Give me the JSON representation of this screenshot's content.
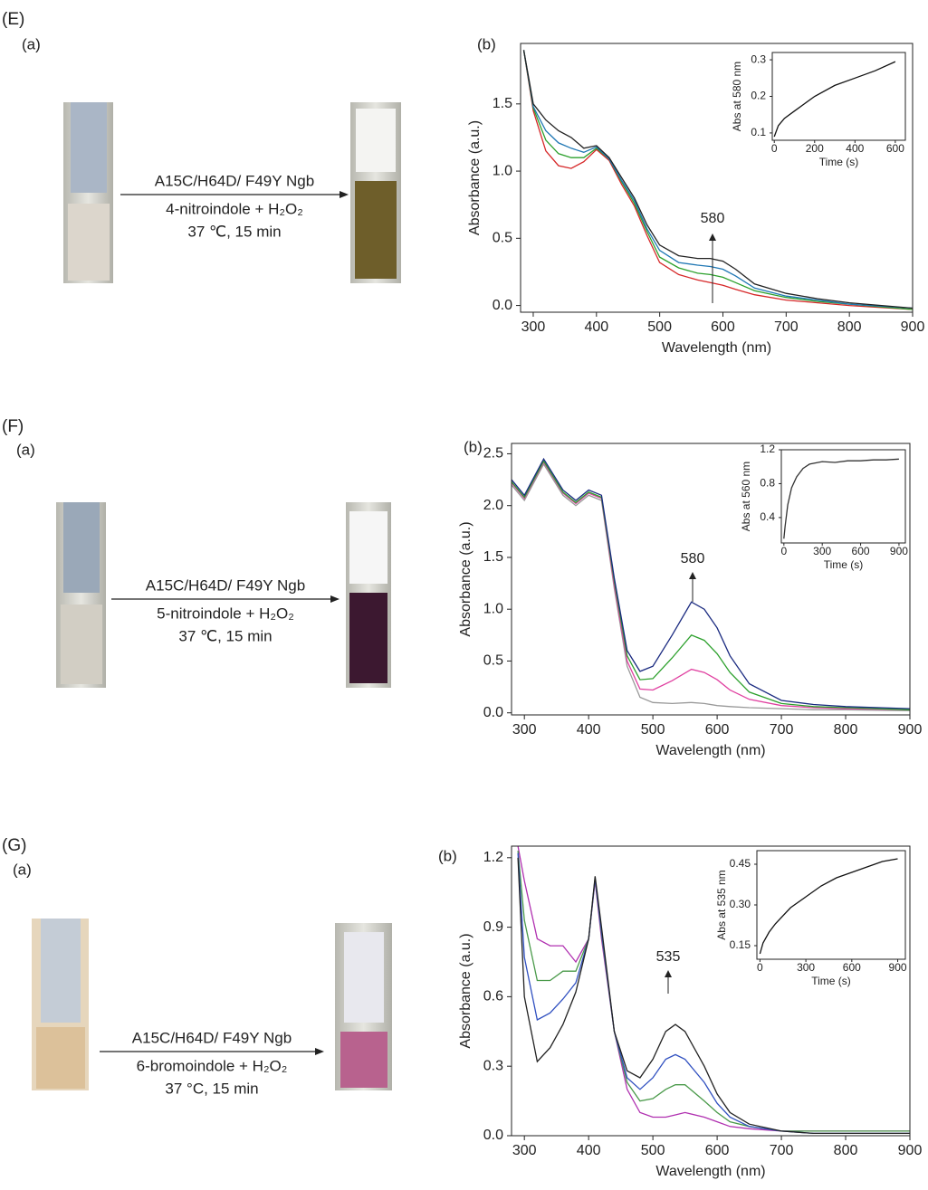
{
  "panels": [
    {
      "label": "(E)",
      "a": "(a)",
      "b": "(b)",
      "enzyme": "A15C/H64D/ F49Y Ngb",
      "substrate": "4-nitroindole + H₂O₂",
      "conditions": "37 ℃, 15 min"
    },
    {
      "label": "(F)",
      "a": "(a)",
      "b": "(b)",
      "enzyme": "A15C/H64D/ F49Y Ngb",
      "substrate": "5-nitroindole + H₂O₂",
      "conditions": "37 ℃, 15 min"
    },
    {
      "label": "(G)",
      "a": "(a)",
      "b": "(b)",
      "enzyme": "A15C/H64D/ F49Y Ngb",
      "substrate": "6-bromoindole + H₂O₂",
      "conditions": "37 °C, 15 min"
    }
  ],
  "chart_data": [
    {
      "type": "line",
      "x_label": "Wavelength (nm)",
      "y_label": "Absorbance (a.u.)",
      "annotation": "580",
      "xlim": [
        280,
        900
      ],
      "ylim": [
        -0.05,
        1.95
      ],
      "xticks": [
        300,
        400,
        500,
        600,
        700,
        800,
        900
      ],
      "yticks": [
        {
          "value": 0,
          "label": "0.0"
        },
        0.5,
        {
          "value": 1,
          "label": "1.0"
        },
        1.5
      ],
      "x": [
        285,
        300,
        320,
        340,
        360,
        380,
        400,
        420,
        440,
        460,
        480,
        500,
        530,
        560,
        580,
        600,
        620,
        650,
        700,
        750,
        800,
        900
      ],
      "series": [
        {
          "color": "#d62728",
          "values": [
            1.9,
            1.45,
            1.15,
            1.04,
            1.02,
            1.07,
            1.16,
            1.08,
            0.9,
            0.74,
            0.52,
            0.32,
            0.23,
            0.19,
            0.17,
            0.15,
            0.12,
            0.08,
            0.04,
            0.02,
            0.0,
            -0.03
          ]
        },
        {
          "color": "#2ca02c",
          "values": [
            1.9,
            1.47,
            1.23,
            1.13,
            1.1,
            1.1,
            1.17,
            1.09,
            0.92,
            0.76,
            0.55,
            0.36,
            0.28,
            0.24,
            0.23,
            0.21,
            0.17,
            0.11,
            0.06,
            0.03,
            0.01,
            -0.03
          ]
        },
        {
          "color": "#1f77b4",
          "values": [
            1.9,
            1.48,
            1.3,
            1.21,
            1.17,
            1.14,
            1.18,
            1.09,
            0.93,
            0.78,
            0.57,
            0.41,
            0.32,
            0.3,
            0.29,
            0.27,
            0.22,
            0.13,
            0.07,
            0.04,
            0.01,
            -0.02
          ]
        },
        {
          "color": "#222222",
          "values": [
            1.9,
            1.5,
            1.38,
            1.3,
            1.25,
            1.17,
            1.19,
            1.1,
            0.95,
            0.8,
            0.6,
            0.45,
            0.37,
            0.35,
            0.35,
            0.33,
            0.27,
            0.16,
            0.09,
            0.05,
            0.02,
            -0.02
          ]
        }
      ]
    },
    {
      "type": "line",
      "x_label": "Time (s)",
      "y_label": "Abs at 580 nm",
      "xlim": [
        -10,
        650
      ],
      "ylim": [
        0.08,
        0.32
      ],
      "xticks": [
        0,
        200,
        400,
        600
      ],
      "yticks": [
        0.1,
        0.2,
        0.3
      ],
      "x": [
        0,
        20,
        50,
        100,
        150,
        200,
        300,
        400,
        500,
        600
      ],
      "series": [
        {
          "color": "#111111",
          "values": [
            0.09,
            0.12,
            0.14,
            0.16,
            0.18,
            0.2,
            0.23,
            0.25,
            0.27,
            0.295
          ]
        }
      ]
    },
    {
      "type": "line",
      "x_label": "Wavelength (nm)",
      "y_label": "Absorbance (a.u.)",
      "annotation": "580",
      "xlim": [
        280,
        900
      ],
      "ylim": [
        -0.02,
        2.6
      ],
      "xticks": [
        300,
        400,
        500,
        600,
        700,
        800,
        900
      ],
      "yticks": [
        {
          "value": 0,
          "label": "0.0"
        },
        0.5,
        {
          "value": 1,
          "label": "1.0"
        },
        1.5,
        {
          "value": 2,
          "label": "2.0"
        },
        2.5
      ],
      "x": [
        280,
        300,
        330,
        360,
        380,
        400,
        420,
        440,
        460,
        480,
        500,
        530,
        560,
        580,
        600,
        620,
        650,
        700,
        750,
        800,
        900
      ],
      "series": [
        {
          "color": "#999999",
          "values": [
            2.2,
            2.05,
            2.4,
            2.1,
            2.0,
            2.1,
            2.05,
            1.2,
            0.45,
            0.15,
            0.1,
            0.09,
            0.1,
            0.09,
            0.07,
            0.06,
            0.05,
            0.04,
            0.03,
            0.03,
            0.02
          ]
        },
        {
          "color": "#e040a0",
          "values": [
            2.22,
            2.07,
            2.42,
            2.12,
            2.02,
            2.12,
            2.07,
            1.23,
            0.5,
            0.23,
            0.22,
            0.31,
            0.42,
            0.39,
            0.32,
            0.22,
            0.13,
            0.07,
            0.05,
            0.04,
            0.03
          ]
        },
        {
          "color": "#2ca02c",
          "values": [
            2.23,
            2.08,
            2.43,
            2.13,
            2.03,
            2.13,
            2.08,
            1.27,
            0.55,
            0.32,
            0.33,
            0.53,
            0.75,
            0.7,
            0.57,
            0.39,
            0.2,
            0.09,
            0.06,
            0.05,
            0.03
          ]
        },
        {
          "color": "#1a2a80",
          "values": [
            2.25,
            2.1,
            2.45,
            2.15,
            2.05,
            2.15,
            2.1,
            1.3,
            0.6,
            0.4,
            0.45,
            0.75,
            1.07,
            1.0,
            0.82,
            0.55,
            0.28,
            0.12,
            0.08,
            0.06,
            0.04
          ]
        }
      ]
    },
    {
      "type": "line",
      "x_label": "Time (s)",
      "y_label": "Abs at 560 nm",
      "xlim": [
        -20,
        950
      ],
      "ylim": [
        0.1,
        1.2
      ],
      "xticks": [
        0,
        300,
        600,
        900
      ],
      "yticks": [
        0.4,
        0.8,
        1.2
      ],
      "x": [
        0,
        10,
        30,
        60,
        100,
        150,
        200,
        300,
        400,
        500,
        600,
        700,
        800,
        900
      ],
      "series": [
        {
          "color": "#333333",
          "values": [
            0.15,
            0.3,
            0.55,
            0.75,
            0.88,
            0.98,
            1.03,
            1.06,
            1.05,
            1.07,
            1.07,
            1.08,
            1.08,
            1.09
          ]
        }
      ]
    },
    {
      "type": "line",
      "x_label": "Wavelength (nm)",
      "y_label": "Absorbance (a.u.)",
      "annotation": "535",
      "xlim": [
        280,
        900
      ],
      "ylim": [
        0,
        1.25
      ],
      "xticks": [
        300,
        400,
        500,
        600,
        700,
        800,
        900
      ],
      "yticks": [
        {
          "value": 0,
          "label": "0.0"
        },
        0.3,
        0.6,
        0.9,
        1.2
      ],
      "x": [
        290,
        300,
        320,
        340,
        360,
        380,
        400,
        410,
        420,
        440,
        460,
        480,
        500,
        520,
        535,
        550,
        580,
        600,
        620,
        650,
        700,
        750,
        800,
        900
      ],
      "series": [
        {
          "color": "#b030b0",
          "values": [
            1.25,
            1.1,
            0.85,
            0.82,
            0.82,
            0.75,
            0.85,
            1.1,
            0.85,
            0.45,
            0.2,
            0.1,
            0.08,
            0.08,
            0.09,
            0.1,
            0.08,
            0.06,
            0.04,
            0.03,
            0.02,
            0.02,
            0.02,
            0.02
          ]
        },
        {
          "color": "#4a9a4a",
          "values": [
            1.23,
            0.93,
            0.67,
            0.67,
            0.71,
            0.71,
            0.85,
            1.11,
            0.87,
            0.45,
            0.23,
            0.15,
            0.16,
            0.2,
            0.22,
            0.22,
            0.15,
            0.1,
            0.06,
            0.04,
            0.02,
            0.02,
            0.02,
            0.02
          ]
        },
        {
          "color": "#3050c0",
          "values": [
            1.22,
            0.77,
            0.5,
            0.53,
            0.59,
            0.66,
            0.85,
            1.11,
            0.88,
            0.45,
            0.25,
            0.2,
            0.25,
            0.33,
            0.35,
            0.33,
            0.23,
            0.14,
            0.08,
            0.04,
            0.02,
            0.01,
            0.01,
            0.01
          ]
        },
        {
          "color": "#222222",
          "values": [
            1.2,
            0.6,
            0.32,
            0.38,
            0.48,
            0.62,
            0.85,
            1.12,
            0.9,
            0.45,
            0.28,
            0.25,
            0.33,
            0.45,
            0.48,
            0.45,
            0.3,
            0.18,
            0.1,
            0.05,
            0.02,
            0.01,
            0.01,
            0.01
          ]
        }
      ]
    },
    {
      "type": "line",
      "x_label": "Time (s)",
      "y_label": "Abs at 535 nm",
      "xlim": [
        -20,
        950
      ],
      "ylim": [
        0.1,
        0.5
      ],
      "xticks": [
        0,
        300,
        600,
        900
      ],
      "yticks": [
        0.15,
        {
          "value": 0.3,
          "label": "0.30"
        },
        0.45
      ],
      "x": [
        0,
        20,
        60,
        100,
        200,
        300,
        400,
        500,
        600,
        700,
        800,
        900
      ],
      "series": [
        {
          "color": "#111111",
          "values": [
            0.12,
            0.16,
            0.2,
            0.23,
            0.29,
            0.33,
            0.37,
            0.4,
            0.42,
            0.44,
            0.46,
            0.47
          ]
        }
      ]
    }
  ]
}
